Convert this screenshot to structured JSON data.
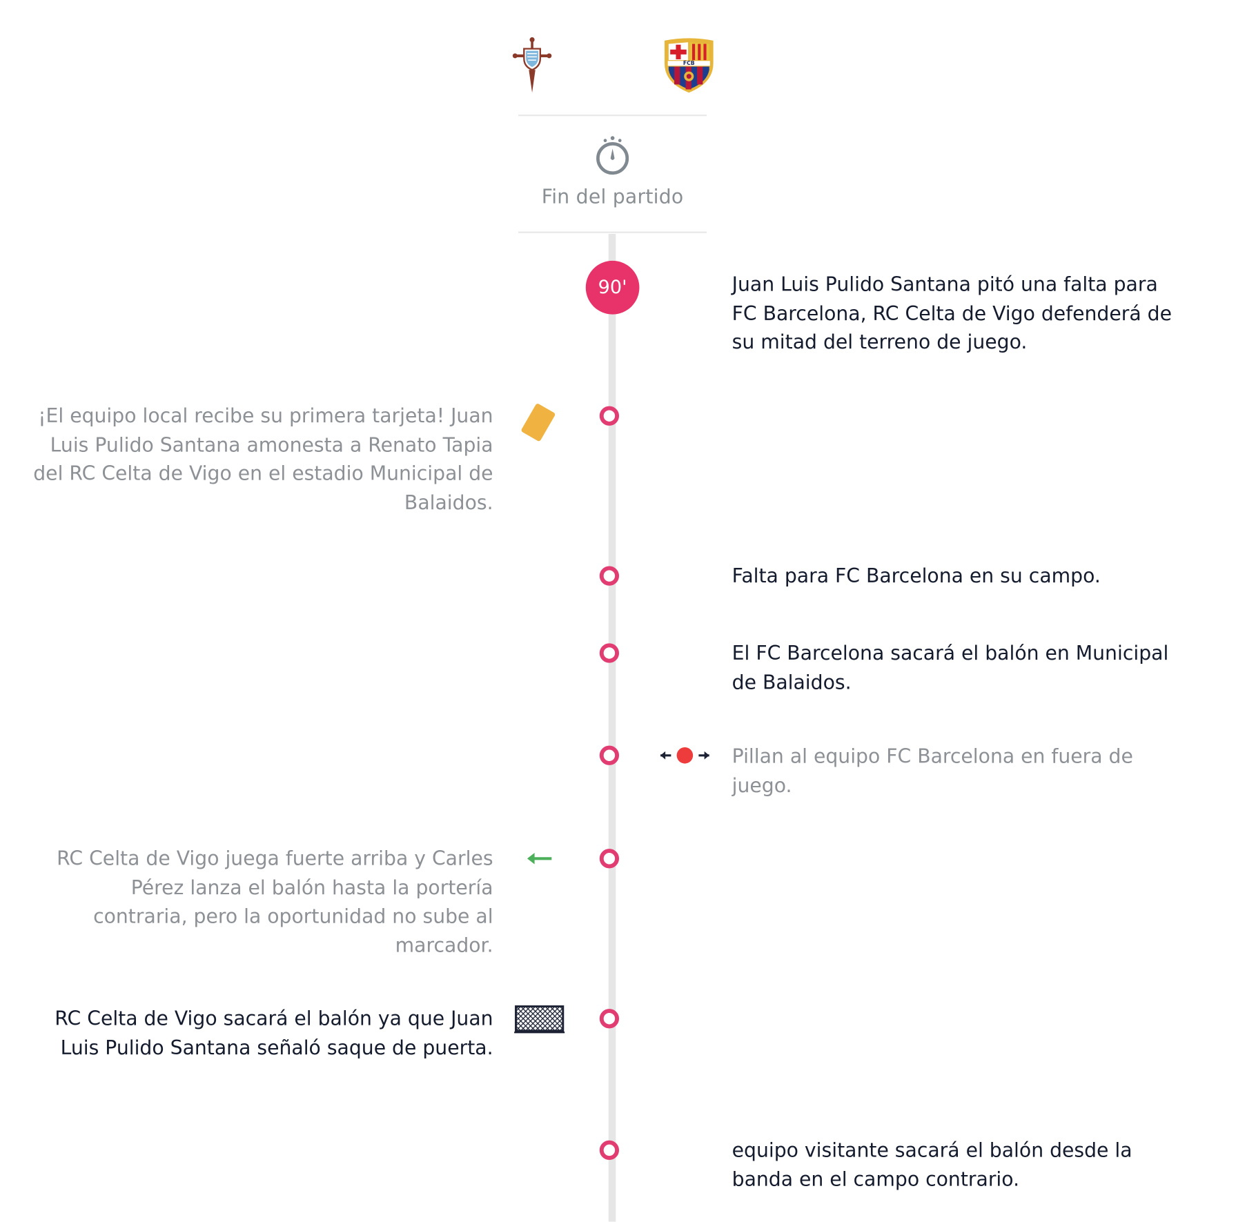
{
  "header": {
    "home_team": {
      "name": "RC Celta de Vigo",
      "crest_icon": "celta-crest-icon"
    },
    "away_team": {
      "name": "FC Barcelona",
      "crest_icon": "barcelona-crest-icon",
      "crest_text": "FCB"
    }
  },
  "status": {
    "icon": "stopwatch-icon",
    "label": "Fin del partido"
  },
  "colors": {
    "accent": "#e8336a",
    "ring": "#e23d72",
    "timeline": "#e6e6e6",
    "yellow_card": "#f0b341",
    "throw_arrow": "#4cb05a",
    "offside_dot": "#ee3b3b"
  },
  "events": [
    {
      "minute": "90'",
      "side": "right",
      "icon": null,
      "text": "Juan Luis Pulido Santana pitó una falta para FC Barcelona, RC Celta de Vigo defenderá de su mitad del terreno de juego."
    },
    {
      "minute": null,
      "side": "left",
      "icon": "yellow-card-icon",
      "text": "¡El equipo local recibe su primera tarjeta! Juan Luis Pulido Santana amonesta a Renato Tapia del RC Celta de Vigo en el estadio Municipal de Balaidos."
    },
    {
      "minute": null,
      "side": "right",
      "icon": null,
      "text": "Falta para FC Barcelona en su campo."
    },
    {
      "minute": null,
      "side": "right",
      "icon": null,
      "text": "El FC Barcelona sacará el balón en Municipal de Balaidos."
    },
    {
      "minute": null,
      "side": "right",
      "icon": "offside-icon",
      "text": "Pillan al equipo FC Barcelona en fuera de juego."
    },
    {
      "minute": null,
      "side": "left",
      "icon": "throw-in-arrow-icon",
      "text": "RC Celta de Vigo juega fuerte arriba y Carles Pérez lanza el balón hasta la portería contraria, pero la oportunidad no sube al marcador."
    },
    {
      "minute": null,
      "side": "left",
      "icon": "goal-net-icon",
      "text": "RC Celta de Vigo sacará el balón ya que Juan Luis Pulido Santana señaló saque de puerta."
    },
    {
      "minute": null,
      "side": "right",
      "icon": null,
      "text": "equipo visitante sacará el balón desde la banda en el campo contrario."
    }
  ]
}
